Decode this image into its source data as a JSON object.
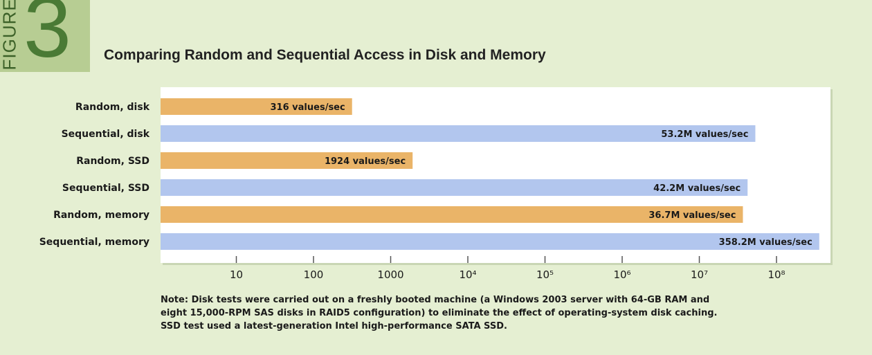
{
  "figure": {
    "label": "FIGURE",
    "number": "3"
  },
  "chart_data": {
    "type": "bar",
    "orientation": "horizontal",
    "title": "Comparing Random and Sequential Access in Disk and Memory",
    "x_scale": "log",
    "xlim": [
      1,
      1000000000
    ],
    "x_ticks": [
      {
        "value": 10,
        "label": "10"
      },
      {
        "value": 100,
        "label": "100"
      },
      {
        "value": 1000,
        "label": "1000"
      },
      {
        "value": 10000,
        "label": "10⁴"
      },
      {
        "value": 100000,
        "label": "10⁵"
      },
      {
        "value": 1000000,
        "label": "10⁶"
      },
      {
        "value": 10000000,
        "label": "10⁷"
      },
      {
        "value": 100000000,
        "label": "10⁸"
      }
    ],
    "grid": false,
    "bars": [
      {
        "category": "Random, disk",
        "value": 316,
        "label": "316 values/sec",
        "color": "#eab468"
      },
      {
        "category": "Sequential, disk",
        "value": 53200000,
        "label": "53.2M values/sec",
        "color": "#b2c6ee"
      },
      {
        "category": "Random, SSD",
        "value": 1924,
        "label": "1924 values/sec",
        "color": "#eab468"
      },
      {
        "category": "Sequential, SSD",
        "value": 42200000,
        "label": "42.2M values/sec",
        "color": "#b2c6ee"
      },
      {
        "category": "Random, memory",
        "value": 36700000,
        "label": "36.7M values/sec",
        "color": "#eab468"
      },
      {
        "category": "Sequential, memory",
        "value": 358200000,
        "label": "358.2M values/sec",
        "color": "#b2c6ee"
      }
    ]
  },
  "note": {
    "lines": [
      "Note: Disk tests were carried out on a freshly booted machine (a Windows 2003 server with 64-GB RAM and",
      "eight 15,000-RPM SAS disks in RAID5 configuration) to eliminate the effect of operating-system disk caching.",
      "SSD test used a latest-generation Intel high-performance SATA SSD."
    ]
  },
  "colors": {
    "background": "#e5efd2",
    "plot_background": "#ffffff",
    "random": "#eab468",
    "sequential": "#b2c6ee",
    "badge": "#b7cd93"
  }
}
